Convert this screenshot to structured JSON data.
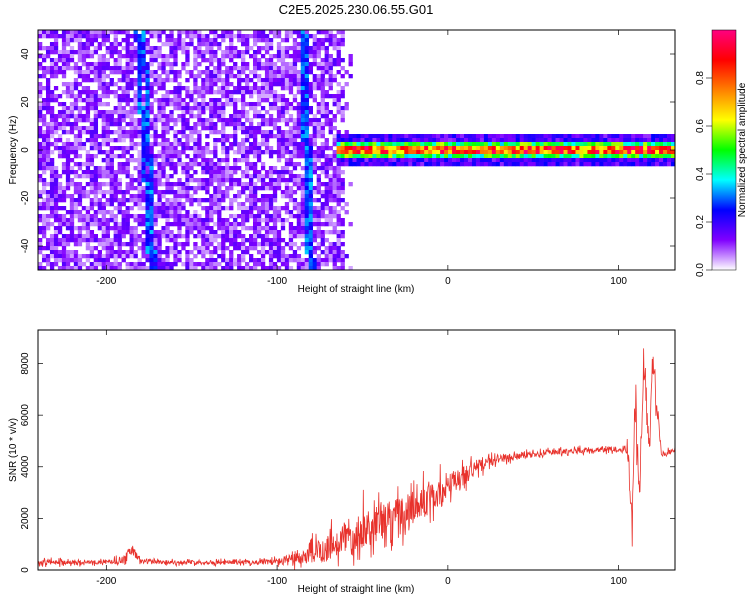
{
  "title": "C2E5.2025.230.06.55.G01",
  "chart_data": [
    {
      "type": "heatmap",
      "xlabel": "Height of straight line (km)",
      "ylabel": "Frequency (Hz)",
      "xlim": [
        -240,
        133
      ],
      "ylim": [
        -50,
        50
      ],
      "x_ticks": [
        -200,
        -100,
        0,
        100
      ],
      "y_ticks": [
        -40,
        -20,
        0,
        20,
        40
      ],
      "colorbar": {
        "label": "Normalized spectral amplitude",
        "range": [
          0.0,
          1.0
        ],
        "ticks": [
          0.0,
          0.2,
          0.4,
          0.6,
          0.8
        ],
        "colors": [
          "#ffffff",
          "#8000ff",
          "#0000ff",
          "#00ffff",
          "#00ff00",
          "#ffff00",
          "#ff8000",
          "#ff0000",
          "#ff0080"
        ]
      },
      "features": {
        "noise_region_x": [
          -240,
          -60
        ],
        "noise_edge_x": -55,
        "signal_band_freq": 0,
        "signal_band_start_x": -65,
        "diagonal_streaks": [
          {
            "x_at_top": -182,
            "x_at_bottom": -174
          },
          {
            "x_at_top": -178,
            "x_at_bottom": -172
          },
          {
            "x_at_top": -86,
            "x_at_bottom": -81
          },
          {
            "x_at_top": -84,
            "x_at_bottom": -79
          }
        ]
      }
    },
    {
      "type": "line",
      "xlabel": "Height of straight line (km)",
      "ylabel": "SNR (10 * v/v)",
      "xlim": [
        -240,
        133
      ],
      "ylim": [
        0,
        9300
      ],
      "x_ticks": [
        -200,
        -100,
        0,
        100
      ],
      "y_ticks": [
        0,
        2000,
        4000,
        6000,
        8000
      ],
      "color": "#e8322c",
      "series": [
        {
          "x": [
            -240,
            -200,
            -190,
            -185,
            -180,
            -160,
            -120,
            -100,
            -90,
            -80,
            -70,
            -60,
            -50,
            -40,
            -30,
            -20,
            -10,
            0,
            10,
            20,
            30,
            40,
            60,
            80,
            100,
            105,
            108,
            110,
            112,
            115,
            118,
            120,
            125,
            133
          ],
          "values": [
            300,
            300,
            400,
            800,
            350,
            300,
            300,
            320,
            400,
            600,
            900,
            1300,
            1600,
            1800,
            2100,
            2400,
            2800,
            3200,
            3700,
            4100,
            4300,
            4400,
            4550,
            4650,
            4700,
            4700,
            2000,
            6500,
            3000,
            8200,
            4400,
            8400,
            4500,
            4600
          ],
          "noise_amplitude": [
            200,
            150,
            300,
            400,
            200,
            150,
            150,
            250,
            500,
            800,
            1200,
            1400,
            1500,
            1500,
            1400,
            1300,
            1200,
            1000,
            800,
            500,
            300,
            250,
            200,
            200,
            200,
            400,
            1200,
            1800,
            1500,
            1500,
            500,
            1500,
            200,
            200
          ]
        }
      ]
    }
  ]
}
